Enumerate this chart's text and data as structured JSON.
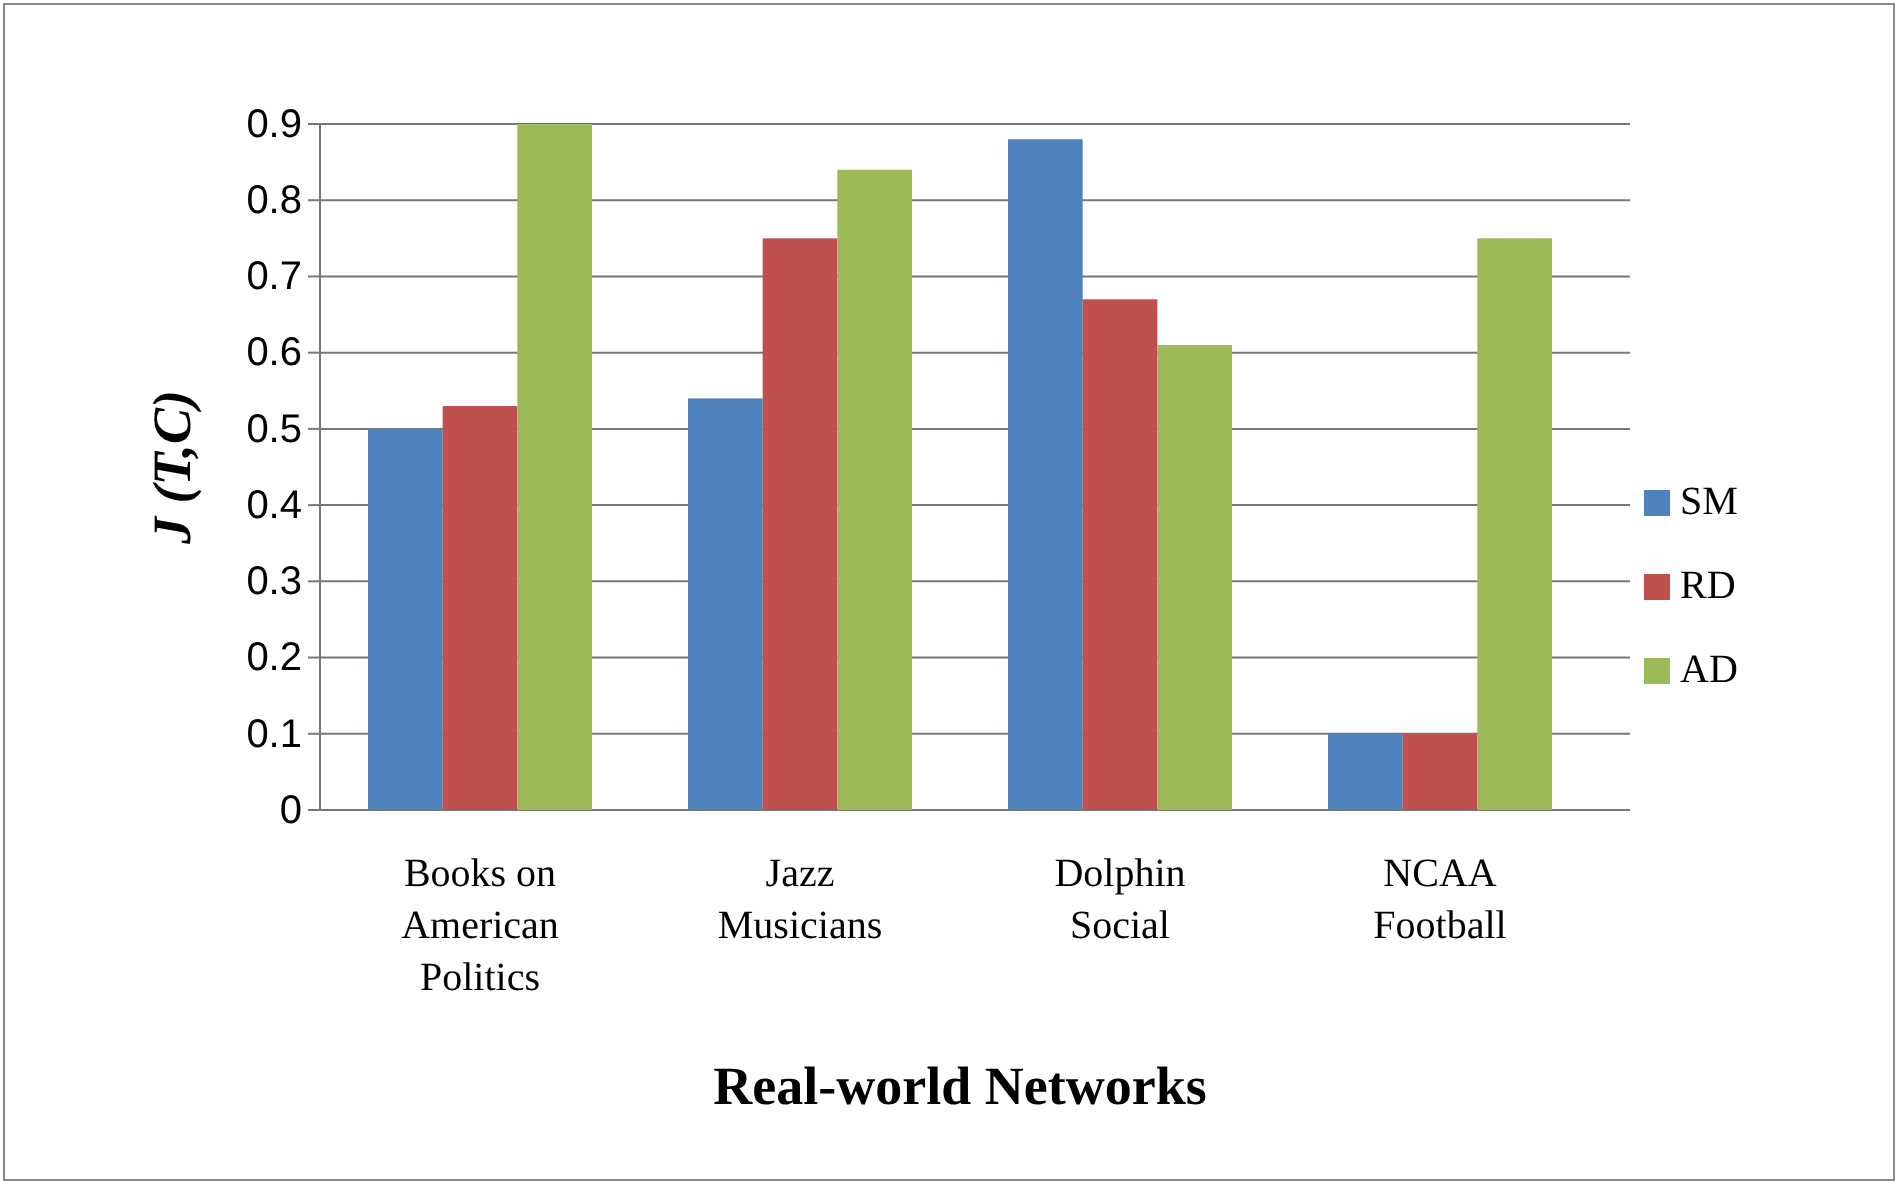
{
  "chart_data": {
    "type": "bar",
    "xlabel": "Real-world Networks",
    "ylabel": "J (T,C)",
    "categories": [
      "Books on American Politics",
      "Jazz Musicians",
      "Dolphin Social",
      "NCAA Football"
    ],
    "series": [
      {
        "name": "SM",
        "color": "#4f81bd",
        "values": [
          0.5,
          0.54,
          0.88,
          0.1
        ]
      },
      {
        "name": "RD",
        "color": "#c0504d",
        "values": [
          0.53,
          0.75,
          0.67,
          0.1
        ]
      },
      {
        "name": "AD",
        "color": "#9bbb59",
        "values": [
          0.9,
          0.84,
          0.61,
          0.75
        ]
      }
    ],
    "ylim": [
      0,
      0.9
    ],
    "yticks": [
      0,
      0.1,
      0.2,
      0.3,
      0.4,
      0.5,
      0.6,
      0.7,
      0.8,
      0.9
    ],
    "grid": "y",
    "legend": "right"
  }
}
